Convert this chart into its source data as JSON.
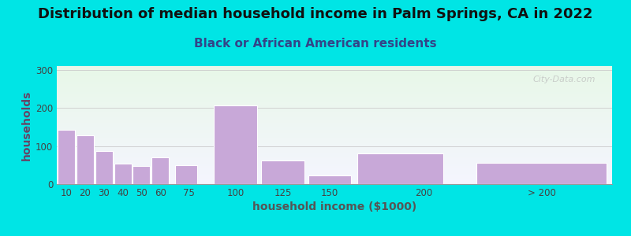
{
  "title": "Distribution of median household income in Palm Springs, CA in 2022",
  "subtitle": "Black or African American residents",
  "xlabel": "household income ($1000)",
  "ylabel": "households",
  "bar_color": "#c8a8d8",
  "bar_edge_color": "#ffffff",
  "background_outer": "#00e5e5",
  "background_inner_top": "#e8f8e8",
  "background_inner_bottom": "#f5f5ff",
  "bar_left_edges": [
    5,
    15,
    25,
    35,
    45,
    55,
    67.5,
    87.5,
    112.5,
    137.5,
    162.5,
    225
  ],
  "bar_widths": [
    10,
    10,
    10,
    10,
    10,
    10,
    12.5,
    25,
    25,
    25,
    50,
    75
  ],
  "values": [
    143,
    128,
    87,
    53,
    48,
    71,
    50,
    207,
    62,
    22,
    80,
    55
  ],
  "xtick_positions": [
    10,
    20,
    30,
    40,
    50,
    60,
    75,
    100,
    125,
    150,
    200,
    262.5
  ],
  "xtick_labels": [
    "10",
    "20",
    "30",
    "40",
    "50",
    "60",
    "75",
    "100",
    "125",
    "150",
    "200",
    "> 200"
  ],
  "xlim": [
    5,
    300
  ],
  "ylim": [
    0,
    310
  ],
  "yticks": [
    0,
    100,
    200,
    300
  ],
  "title_fontsize": 13,
  "subtitle_fontsize": 11,
  "axis_label_fontsize": 10,
  "tick_fontsize": 8.5,
  "watermark_text": "City-Data.com"
}
